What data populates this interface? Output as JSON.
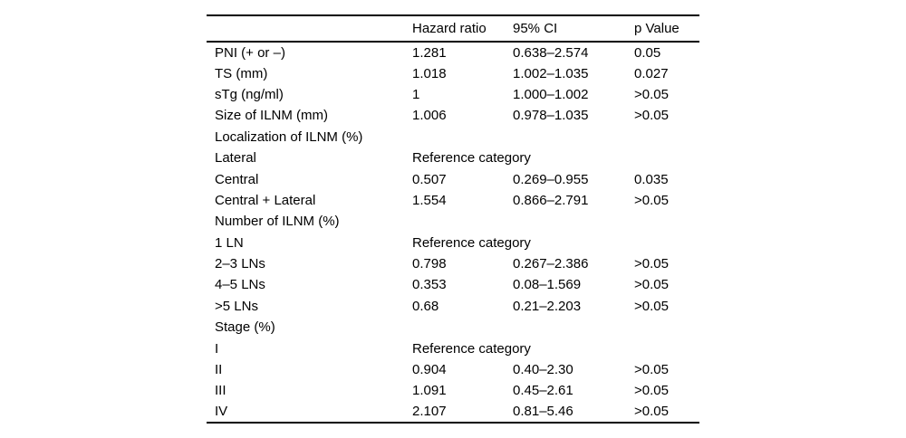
{
  "table": {
    "title_semantic": "multivariate-analysis-results",
    "header": {
      "label": "",
      "hazard_ratio": "Hazard ratio",
      "ci": "95% CI",
      "p_value": "p Value"
    },
    "reference_text": "Reference category",
    "rows": [
      {
        "type": "data",
        "label": "PNI (+ or –)",
        "hr": "1.281",
        "ci": "0.638–2.574",
        "p": "0.05"
      },
      {
        "type": "data",
        "label": "TS (mm)",
        "hr": "1.018",
        "ci": "1.002–1.035",
        "p": "0.027"
      },
      {
        "type": "data",
        "label": "sTg (ng/ml)",
        "hr": "1",
        "ci": "1.000–1.002",
        "p": ">0.05"
      },
      {
        "type": "data",
        "label": "Size of ILNM (mm)",
        "hr": "1.006",
        "ci": "0.978–1.035",
        "p": ">0.05"
      },
      {
        "type": "section",
        "label": "Localization of ILNM (%)"
      },
      {
        "type": "reference",
        "label": "Lateral",
        "ref": "Reference category"
      },
      {
        "type": "data",
        "label": "Central",
        "hr": "0.507",
        "ci": "0.269–0.955",
        "p": "0.035"
      },
      {
        "type": "data",
        "label": "Central + Lateral",
        "hr": "1.554",
        "ci": "0.866–2.791",
        "p": ">0.05"
      },
      {
        "type": "section",
        "label": "Number of ILNM (%)"
      },
      {
        "type": "reference",
        "label": "1 LN",
        "ref": "Reference category"
      },
      {
        "type": "data",
        "label": "2–3 LNs",
        "hr": "0.798",
        "ci": "0.267–2.386",
        "p": ">0.05"
      },
      {
        "type": "data",
        "label": "4–5 LNs",
        "hr": "0.353",
        "ci": "0.08–1.569",
        "p": ">0.05"
      },
      {
        "type": "data",
        "label": ">5 LNs",
        "hr": "0.68",
        "ci": "0.21–2.203",
        "p": ">0.05"
      },
      {
        "type": "section",
        "label": "Stage (%)"
      },
      {
        "type": "reference",
        "label": "I",
        "ref": "Reference category"
      },
      {
        "type": "data",
        "label": "II",
        "hr": "0.904",
        "ci": "0.40–2.30",
        "p": ">0.05"
      },
      {
        "type": "data",
        "label": "III",
        "hr": "1.091",
        "ci": "0.45–2.61",
        "p": ">0.05"
      },
      {
        "type": "data",
        "label": "IV",
        "hr": "2.107",
        "ci": "0.81–5.46",
        "p": ">0.05"
      }
    ],
    "colors": {
      "text": "#000000",
      "background": "#ffffff",
      "rule": "#000000"
    }
  }
}
